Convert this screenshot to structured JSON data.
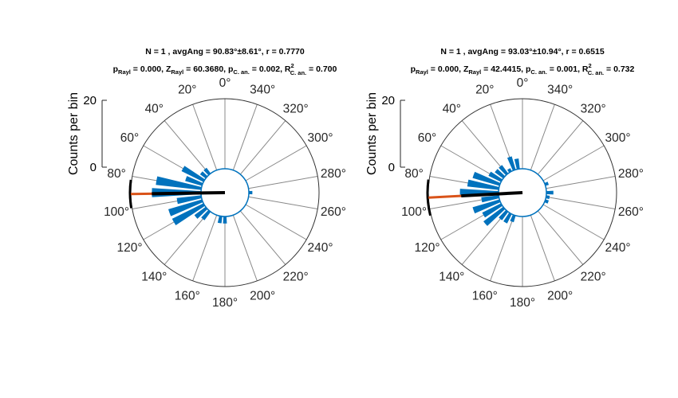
{
  "colors": {
    "bar": "#0072BD",
    "mean_line": "#D95319",
    "resultant": "#000000",
    "spoke": "#888888",
    "circle": "#333333"
  },
  "chart_data": [
    {
      "type": "polar-histogram",
      "title_line1": "N = 1 , avgAng = 90.83°±8.61°, r = 0.7770",
      "title_line2": {
        "p_rayl": "0.000",
        "z_rayl": "60.3680",
        "p_can": "0.002",
        "r2_can": "0.700"
      },
      "ylabel": "Counts per bin",
      "r_ticks": [
        "0",
        "20"
      ],
      "rlim": [
        0,
        20
      ],
      "angle_labels": [
        "0°",
        "20°",
        "40°",
        "60°",
        "80°",
        "100°",
        "120°",
        "140°",
        "160°",
        "180°",
        "200°",
        "220°",
        "240°",
        "260°",
        "280°",
        "300°",
        "320°",
        "340°"
      ],
      "bin_width_deg": 10,
      "bin_centers_deg": [
        0,
        10,
        20,
        30,
        40,
        50,
        60,
        70,
        80,
        90,
        100,
        110,
        120,
        130,
        140,
        150,
        160,
        170,
        180,
        190,
        200,
        210,
        220,
        230,
        240,
        250,
        260,
        270,
        280,
        290,
        300,
        310,
        320,
        330,
        340,
        350
      ],
      "counts": [
        0,
        0,
        0,
        0,
        2,
        2,
        7,
        5,
        13,
        14,
        7,
        10,
        10,
        4,
        3,
        0,
        0,
        2,
        2,
        0,
        0,
        0,
        0,
        0,
        0,
        0,
        0,
        1,
        0,
        0,
        0,
        0,
        0,
        0,
        0,
        0
      ],
      "mean_angle_deg": 90.83,
      "ci_half_width_deg": 8.61,
      "resultant_r": 0.777
    },
    {
      "type": "polar-histogram",
      "title_line1": "N = 1 , avgAng = 93.03°±10.94°, r = 0.6515",
      "title_line2": {
        "p_rayl": "0.000",
        "z_rayl": "42.4415",
        "p_can": "0.001",
        "r2_can": "0.732"
      },
      "ylabel": "Counts per bin",
      "r_ticks": [
        "0",
        "20"
      ],
      "rlim": [
        0,
        20
      ],
      "angle_labels": [
        "0°",
        "20°",
        "40°",
        "60°",
        "80°",
        "100°",
        "120°",
        "140°",
        "160°",
        "180°",
        "200°",
        "220°",
        "240°",
        "260°",
        "280°",
        "300°",
        "320°",
        "340°"
      ],
      "bin_width_deg": 10,
      "bin_centers_deg": [
        0,
        10,
        20,
        30,
        40,
        50,
        60,
        70,
        80,
        90,
        100,
        110,
        120,
        130,
        140,
        150,
        160,
        170,
        180,
        190,
        200,
        210,
        220,
        230,
        240,
        250,
        260,
        270,
        280,
        290,
        300,
        310,
        320,
        330,
        340,
        350
      ],
      "counts": [
        0,
        3,
        4,
        1,
        3,
        3,
        4,
        8,
        9,
        11,
        5,
        8,
        6,
        7,
        3,
        3,
        2,
        0,
        0,
        0,
        0,
        0,
        0,
        0,
        0,
        1,
        1,
        2,
        0,
        1,
        0,
        0,
        0,
        0,
        0,
        0
      ],
      "mean_angle_deg": 93.03,
      "ci_half_width_deg": 10.94,
      "resultant_r": 0.6515
    }
  ]
}
